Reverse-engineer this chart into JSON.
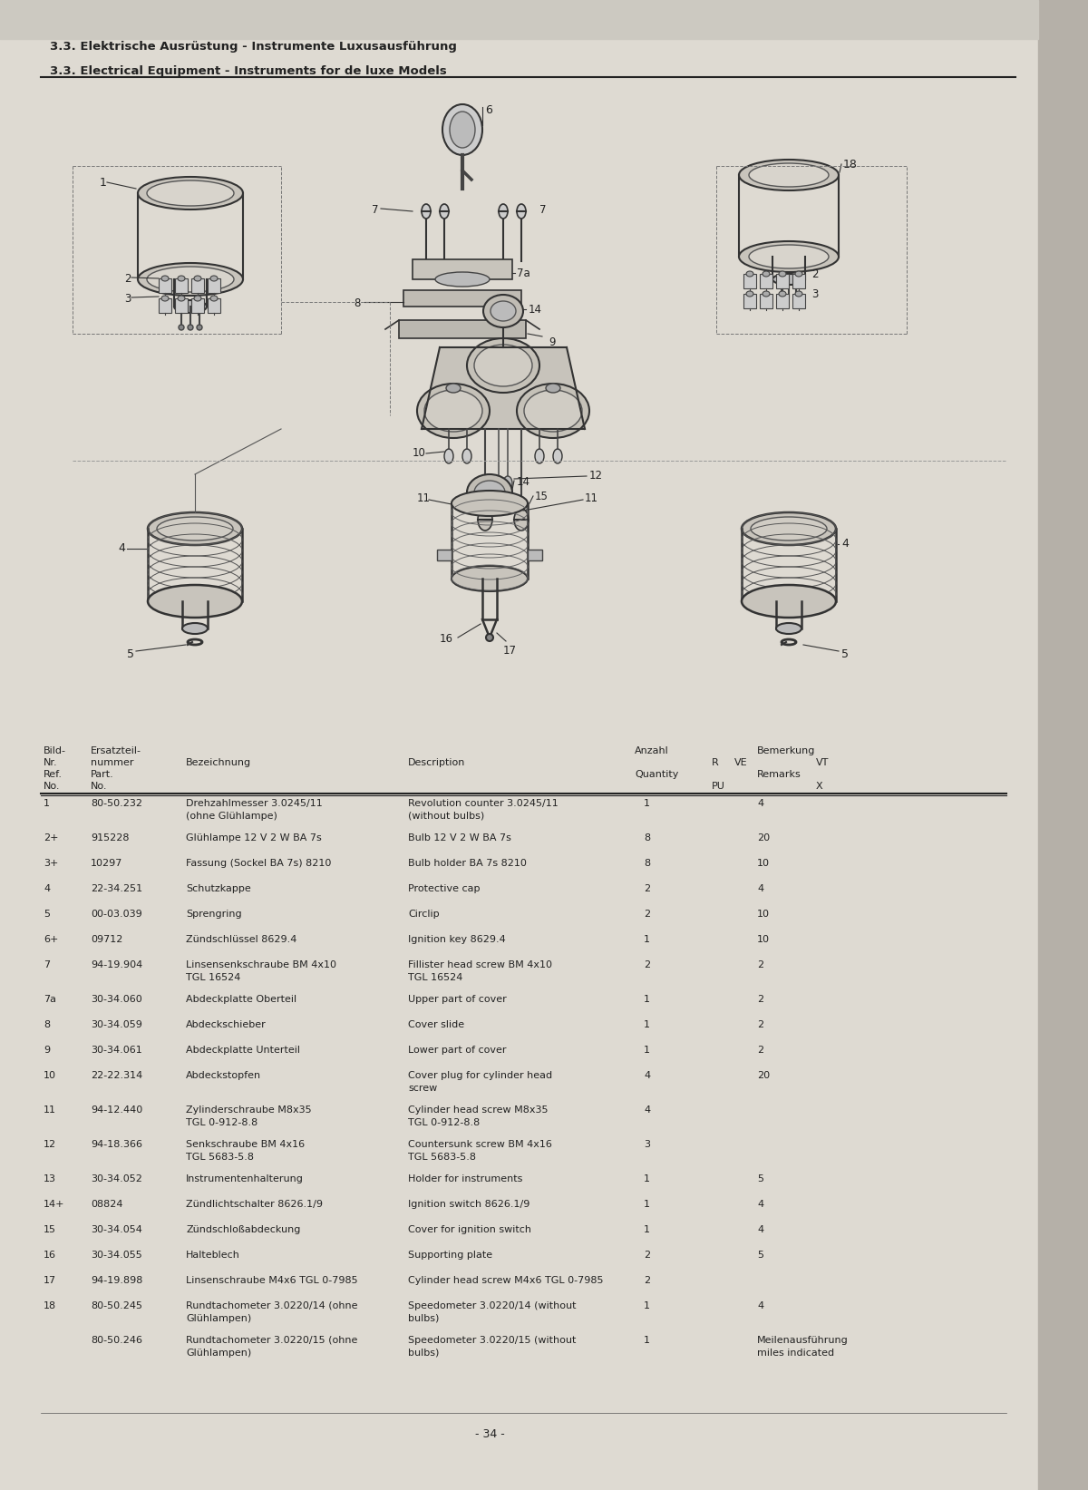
{
  "page_bg": "#d8d5cc",
  "content_bg": "#e0ddd4",
  "title_de": "3.3. Elektrische Ausrüstung - Instrumente Luxusausführung",
  "title_en": "3.3. Electrical Equipment - Instruments for de luxe Models",
  "table_rows": [
    [
      "1",
      "80-50.232",
      "Drehzahlmesser 3.0245/11\n(ohne Glühlampe)",
      "Revolution counter 3.0245/11\n(without bulbs)",
      "1",
      "",
      "4"
    ],
    [
      "2+",
      "915228",
      "Glühlampe 12 V 2 W BA 7s",
      "Bulb 12 V 2 W BA 7s",
      "8",
      "",
      "20"
    ],
    [
      "3+",
      "10297",
      "Fassung (Sockel BA 7s) 8210",
      "Bulb holder BA 7s 8210",
      "8",
      "",
      "10"
    ],
    [
      "4",
      "22-34.251",
      "Schutzkappe",
      "Protective cap",
      "2",
      "",
      "4"
    ],
    [
      "5",
      "00-03.039",
      "Sprengring",
      "Circlip",
      "2",
      "",
      "10"
    ],
    [
      "6+",
      "09712",
      "Zündschlüssel 8629.4",
      "Ignition key 8629.4",
      "1",
      "",
      "10"
    ],
    [
      "7",
      "94-19.904",
      "Linsensenkschraube BM 4x10\nTGL 16524",
      "Fillister head screw BM 4x10\nTGL 16524",
      "2",
      "",
      "2"
    ],
    [
      "7a",
      "30-34.060",
      "Abdeckplatte Oberteil",
      "Upper part of cover",
      "1",
      "",
      "2"
    ],
    [
      "8",
      "30-34.059",
      "Abdeckschieber",
      "Cover slide",
      "1",
      "",
      "2"
    ],
    [
      "9",
      "30-34.061",
      "Abdeckplatte Unterteil",
      "Lower part of cover",
      "1",
      "",
      "2"
    ],
    [
      "10",
      "22-22.314",
      "Abdeckstopfen",
      "Cover plug for cylinder head\nscrew",
      "4",
      "",
      "20"
    ],
    [
      "11",
      "94-12.440",
      "Zylinderschraube M8x35\nTGL 0-912-8.8",
      "Cylinder head screw M8x35\nTGL 0-912-8.8",
      "4",
      "",
      ""
    ],
    [
      "12",
      "94-18.366",
      "Senkschraube BM 4x16\nTGL 5683-5.8",
      "Countersunk screw BM 4x16\nTGL 5683-5.8",
      "3",
      "",
      ""
    ],
    [
      "13",
      "30-34.052",
      "Instrumentenhalterung",
      "Holder for instruments",
      "1",
      "",
      "5"
    ],
    [
      "14+",
      "08824",
      "Zündlichtschalter 8626.1/9",
      "Ignition switch 8626.1/9",
      "1",
      "",
      "4"
    ],
    [
      "15",
      "30-34.054",
      "Zündschloßabdeckung",
      "Cover for ignition switch",
      "1",
      "",
      "4"
    ],
    [
      "16",
      "30-34.055",
      "Halteblech",
      "Supporting plate",
      "2",
      "",
      "5"
    ],
    [
      "17",
      "94-19.898",
      "Linsenschraube M4x6 TGL 0-7985",
      "Cylinder head screw M4x6 TGL 0-7985",
      "2",
      "",
      ""
    ],
    [
      "18",
      "80-50.245",
      "Rundtachometer 3.0220/14 (ohne\nGlühlampen)",
      "Speedometer 3.0220/14 (without\nbulbs)",
      "1",
      "",
      "4"
    ],
    [
      "",
      "80-50.246",
      "Rundtachometer 3.0220/15 (ohne\nGlühlampen)",
      "Speedometer 3.0220/15 (without\nbulbs)",
      "1",
      "",
      "Meilenausführung\nmiles indicated"
    ]
  ],
  "footer": "- 34 -"
}
